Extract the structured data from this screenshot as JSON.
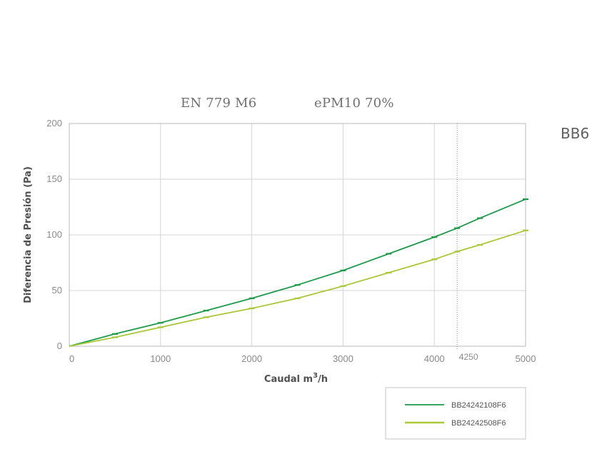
{
  "header": {
    "standard": "EN 779 M6",
    "iso": "ePM10 70%"
  },
  "model": "BB6",
  "marker_label": "4250",
  "chart_data": {
    "type": "line",
    "title": "",
    "xlabel": "Caudal m",
    "xlabel_sup": "3",
    "xlabel_tail": "/h",
    "ylabel": "Diferencia de Presión (Pa)",
    "xlim": [
      0,
      5000
    ],
    "ylim": [
      0,
      200
    ],
    "xticks": [
      0,
      1000,
      2000,
      3000,
      4000,
      5000
    ],
    "yticks": [
      0,
      50,
      100,
      150,
      200
    ],
    "grid": true,
    "marker_x": 4250,
    "legend_position": "bottom-right",
    "series": [
      {
        "name": "BB24242108F6",
        "color": "#1e9a4a",
        "x": [
          0,
          500,
          1000,
          1500,
          2000,
          2500,
          3000,
          3500,
          4000,
          4250,
          4500,
          5000
        ],
        "y": [
          0,
          11,
          21,
          32,
          43,
          55,
          68,
          83,
          98,
          106,
          115,
          132
        ]
      },
      {
        "name": "BB24242508F6",
        "color": "#a8c838",
        "x": [
          0,
          500,
          1000,
          1500,
          2000,
          2500,
          3000,
          3500,
          4000,
          4250,
          4500,
          5000
        ],
        "y": [
          0,
          8,
          17,
          26,
          34,
          43,
          54,
          66,
          78,
          85,
          91,
          104
        ]
      }
    ]
  }
}
